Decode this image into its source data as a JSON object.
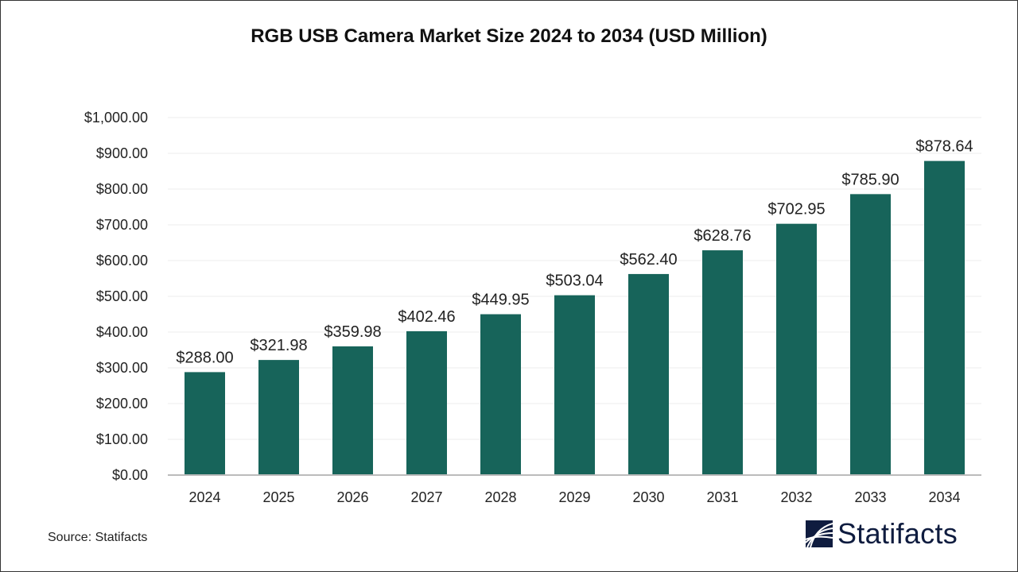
{
  "chart_data": {
    "type": "bar",
    "title": "RGB USB Camera Market Size 2024 to 2034 (USD Million)",
    "categories": [
      "2024",
      "2025",
      "2026",
      "2027",
      "2028",
      "2029",
      "2030",
      "2031",
      "2032",
      "2033",
      "2034"
    ],
    "values": [
      288.0,
      321.98,
      359.98,
      402.46,
      449.95,
      503.04,
      562.4,
      628.76,
      702.95,
      785.9,
      878.64
    ],
    "data_labels": [
      "$288.00",
      "$321.98",
      "$359.98",
      "$402.46",
      "$449.95",
      "$503.04",
      "$562.40",
      "$628.76",
      "$702.95",
      "$785.90",
      "$878.64"
    ],
    "yticks": [
      "$0.00",
      "$100.00",
      "$200.00",
      "$300.00",
      "$400.00",
      "$500.00",
      "$600.00",
      "$700.00",
      "$800.00",
      "$900.00",
      "$1,000.00"
    ],
    "ylim": [
      0,
      1000
    ],
    "xlabel": "",
    "ylabel": "",
    "grid": true,
    "bar_color": "#17645a"
  },
  "source": "Source: Statifacts",
  "logo": {
    "text": "Statifacts",
    "color": "#0f1c3f"
  }
}
